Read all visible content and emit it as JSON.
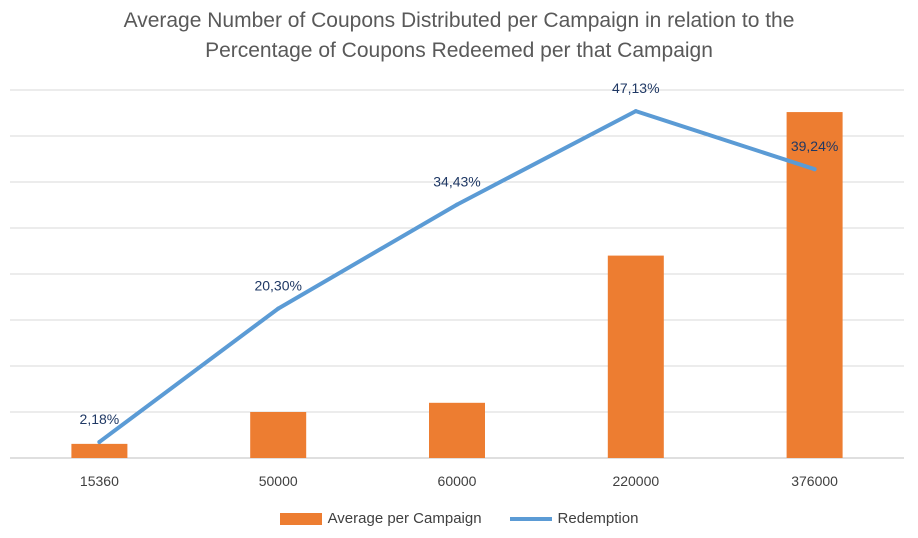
{
  "chart_data": {
    "type": "bar+line",
    "title": [
      "Average Number of Coupons Distributed per Campaign in relation to the",
      "Percentage of Coupons Redeemed per that Campaign"
    ],
    "categories": [
      "15360",
      "50000",
      "60000",
      "220000",
      "376000"
    ],
    "series": [
      {
        "name": "Average per Campaign",
        "type": "bar",
        "values": [
          15360,
          50000,
          60000,
          220000,
          376000
        ],
        "color": "#ED7D31",
        "ylim": [
          0,
          400000
        ]
      },
      {
        "name": "Redemption",
        "type": "line",
        "values": [
          2.18,
          20.3,
          34.43,
          47.13,
          39.24
        ],
        "labels": [
          "2,18%",
          "20,30%",
          "34,43%",
          "47,13%",
          "39,24%"
        ],
        "color": "#5B9BD5",
        "ylim": [
          0,
          50
        ]
      }
    ],
    "gridlines": true,
    "legend_position": "bottom"
  }
}
